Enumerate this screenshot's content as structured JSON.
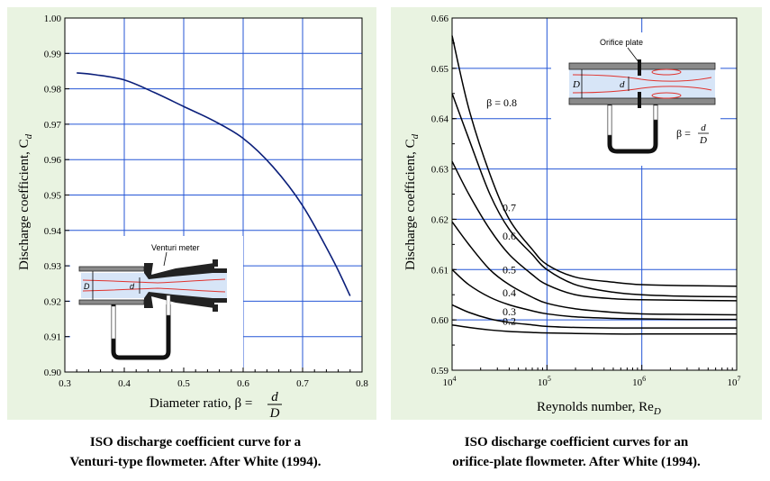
{
  "figures": [
    {
      "caption_line1": "ISO discharge coefficient curve for a",
      "caption_line2": "Venturi-type flowmeter.  After White (1994).",
      "inset_label": "Venturi meter",
      "inset_D": "D",
      "inset_d": "d"
    },
    {
      "caption_line1": "ISO discharge coefficient curves for an",
      "caption_line2": "orifice-plate flowmeter.  After White (1994).",
      "inset_label": "Orifice plate",
      "inset_D": "D",
      "inset_d": "d",
      "beta_eq_left": "β =",
      "beta_num": "d",
      "beta_den": "D"
    }
  ],
  "chart_data": [
    {
      "type": "line",
      "xlabel": "Diameter ratio, β =",
      "xlabel_frac_num": "d",
      "xlabel_frac_den": "D",
      "ylabel": "Discharge coefficient, C",
      "ylabel_sub": "d",
      "xlim": [
        0.3,
        0.8
      ],
      "ylim": [
        0.9,
        1.0
      ],
      "xticks": [
        "0.3",
        "0.4",
        "0.5",
        "0.6",
        "0.7",
        "0.8"
      ],
      "yticks": [
        "0.90",
        "0.91",
        "0.92",
        "0.93",
        "0.94",
        "0.95",
        "0.96",
        "0.97",
        "0.98",
        "0.99",
        "1.00"
      ],
      "grid": true,
      "series": [
        {
          "color": "#0b1f7a",
          "x": [
            0.32,
            0.35,
            0.4,
            0.45,
            0.5,
            0.55,
            0.6,
            0.65,
            0.7,
            0.75,
            0.78
          ],
          "y": [
            0.9845,
            0.984,
            0.9825,
            0.979,
            0.975,
            0.971,
            0.966,
            0.958,
            0.947,
            0.932,
            0.9215
          ]
        }
      ]
    },
    {
      "type": "line",
      "xlabel": "Reynolds number, Re",
      "xlabel_sub": "D",
      "ylabel": "Discharge coefficient, C",
      "ylabel_sub": "d",
      "xscale": "log",
      "xlim": [
        10000,
        10000000
      ],
      "ylim": [
        0.59,
        0.66
      ],
      "xticks": [
        {
          "base": "10",
          "exp": "4"
        },
        {
          "base": "10",
          "exp": "5"
        },
        {
          "base": "10",
          "exp": "6"
        },
        {
          "base": "10",
          "exp": "7"
        }
      ],
      "yticks": [
        "0.59",
        "0.60",
        "0.61",
        "0.62",
        "0.63",
        "0.64",
        "0.65",
        "0.66"
      ],
      "grid": true,
      "series": [
        {
          "label": "β = 0.8",
          "color": "#000000",
          "x": [
            10000,
            15000,
            25000,
            40000,
            70000,
            100000,
            200000,
            500000,
            1000000,
            3000000,
            10000000
          ],
          "y": [
            0.6565,
            0.642,
            0.629,
            0.62,
            0.614,
            0.611,
            0.6085,
            0.6075,
            0.607,
            0.6068,
            0.6067
          ]
        },
        {
          "label": "0.7",
          "color": "#000000",
          "x": [
            10000,
            15000,
            25000,
            40000,
            70000,
            100000,
            200000,
            500000,
            1000000,
            3000000,
            10000000
          ],
          "y": [
            0.645,
            0.636,
            0.625,
            0.618,
            0.613,
            0.61,
            0.607,
            0.6055,
            0.605,
            0.6047,
            0.6046
          ]
        },
        {
          "label": "0.6",
          "color": "#000000",
          "x": [
            10000,
            15000,
            25000,
            40000,
            70000,
            100000,
            200000,
            500000,
            1000000,
            3000000,
            10000000
          ],
          "y": [
            0.6315,
            0.625,
            0.618,
            0.613,
            0.609,
            0.607,
            0.605,
            0.6042,
            0.604,
            0.6039,
            0.6038
          ]
        },
        {
          "label": "0.5",
          "color": "#000000",
          "x": [
            10000,
            15000,
            25000,
            40000,
            70000,
            100000,
            200000,
            500000,
            1000000,
            3000000,
            10000000
          ],
          "y": [
            0.6195,
            0.615,
            0.61,
            0.607,
            0.6045,
            0.6033,
            0.6022,
            0.6015,
            0.6012,
            0.6011,
            0.601
          ]
        },
        {
          "label": "0.4",
          "color": "#000000",
          "x": [
            10000,
            15000,
            25000,
            40000,
            70000,
            100000,
            200000,
            500000,
            1000000,
            3000000,
            10000000
          ],
          "y": [
            0.61,
            0.607,
            0.6045,
            0.603,
            0.6018,
            0.6012,
            0.6006,
            0.6003,
            0.6002,
            0.6001,
            0.6001
          ]
        },
        {
          "label": "0.3",
          "color": "#000000",
          "x": [
            10000,
            15000,
            25000,
            40000,
            70000,
            100000,
            200000,
            500000,
            1000000,
            3000000,
            10000000
          ],
          "y": [
            0.603,
            0.6015,
            0.6002,
            0.5995,
            0.599,
            0.5987,
            0.5985,
            0.5984,
            0.5984,
            0.5984,
            0.5984
          ]
        },
        {
          "label": "0.2",
          "color": "#000000",
          "x": [
            10000,
            15000,
            25000,
            40000,
            70000,
            100000,
            200000,
            500000,
            1000000,
            3000000,
            10000000
          ],
          "y": [
            0.599,
            0.5985,
            0.598,
            0.5977,
            0.5975,
            0.5974,
            0.5973,
            0.5972,
            0.5972,
            0.5972,
            0.5972
          ]
        }
      ]
    }
  ]
}
